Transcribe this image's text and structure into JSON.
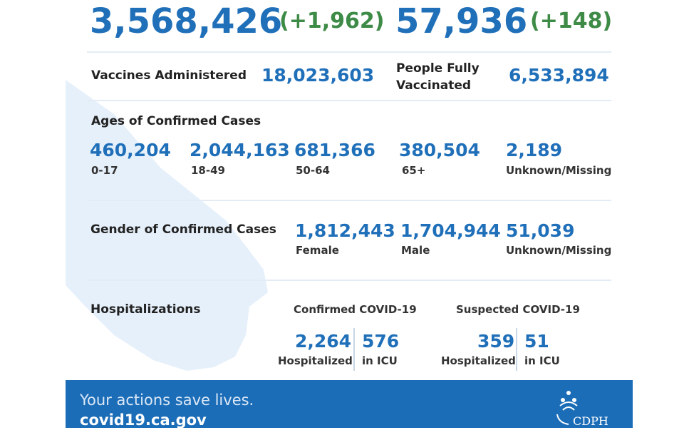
{
  "totals": {
    "cases": "3,568,426",
    "cases_change": "(+1,962)",
    "deaths": "57,936",
    "deaths_change": "(+148)"
  },
  "vaccines": {
    "administered_label": "Vaccines Administered",
    "administered_value": "18,023,603",
    "fully_label_line1": "People Fully",
    "fully_label_line2": "Vaccinated",
    "fully_value": "6,533,894"
  },
  "ages": {
    "title": "Ages of Confirmed Cases",
    "groups": [
      {
        "value": "460,204",
        "label": "0-17"
      },
      {
        "value": "2,044,163",
        "label": "18-49"
      },
      {
        "value": "681,366",
        "label": "50-64"
      },
      {
        "value": "380,504",
        "label": "65+"
      },
      {
        "value": "2,189",
        "label": "Unknown/Missing"
      }
    ]
  },
  "gender": {
    "title": "Gender of Confirmed Cases",
    "groups": [
      {
        "value": "1,812,443",
        "label": "Female"
      },
      {
        "value": "1,704,944",
        "label": "Male"
      },
      {
        "value": "51,039",
        "label": "Unknown/Missing"
      }
    ]
  },
  "hospitalizations": {
    "title": "Hospitalizations",
    "confirmed_title": "Confirmed COVID-19",
    "confirmed_hosp_value": "2,264",
    "confirmed_hosp_label": "Hospitalized",
    "confirmed_icu_value": "576",
    "confirmed_icu_label": "in ICU",
    "suspected_title": "Suspected COVID-19",
    "suspected_hosp_value": "359",
    "suspected_hosp_label": "Hospitalized",
    "suspected_icu_value": "51",
    "suspected_icu_label": "in ICU"
  },
  "footer": {
    "line1": "Your actions save lives.",
    "line2": "covid19.ca.gov",
    "logo_text": "CDPH"
  },
  "colors": {
    "brand_blue": "#1f6fb9",
    "positive_green": "#3d8b47",
    "footer_blue": "#1c6db8"
  }
}
